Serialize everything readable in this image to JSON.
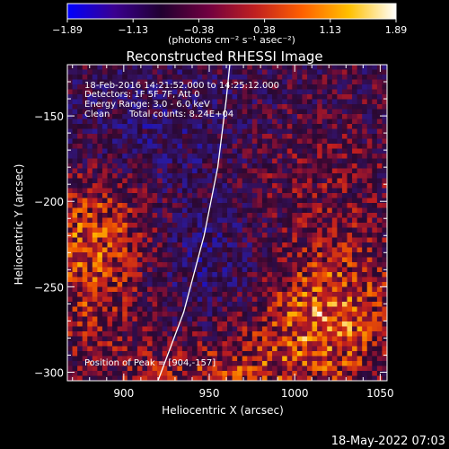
{
  "colorbar": {
    "ticks": [
      "-1.89",
      "-1.13",
      "-0.38",
      "0.38",
      "1.13",
      "1.89"
    ],
    "unit_label": "(photons cm⁻² s⁻¹ asec⁻²)",
    "range": [
      -1.89,
      1.89
    ],
    "colors": [
      "#0000ff",
      "#3a0090",
      "#200030",
      "#700040",
      "#c02020",
      "#ff6000",
      "#ffc000",
      "#ffffff"
    ]
  },
  "chart_data": {
    "type": "heatmap",
    "title": "Reconstructed RHESSI Image",
    "xlabel": "Heliocentric X (arcsec)",
    "ylabel": "Heliocentric Y (arcsec)",
    "xlim": [
      867,
      1054
    ],
    "ylim": [
      -305,
      -120
    ],
    "xticks": [
      900,
      950,
      1000,
      1050
    ],
    "yticks": [
      -150,
      -200,
      -250,
      -300
    ],
    "xtick_labels": [
      "900",
      "950",
      "1000",
      "1050"
    ],
    "ytick_labels": [
      "-150",
      "-200",
      "-250",
      "-300"
    ],
    "grid": false,
    "limb_curve": {
      "points": [
        [
          920,
          -305
        ],
        [
          935,
          -265
        ],
        [
          947,
          -220
        ],
        [
          955,
          -180
        ],
        [
          960,
          -140
        ],
        [
          962,
          -120
        ]
      ],
      "color": "#ffffff"
    },
    "annotations": [
      "18-Feb-2016 14:21:52.000 to 14:25:12.000",
      "Detectors: 1F 5F 7F, Att 0",
      "Energy Range: 3.0 - 6.0 keV",
      "Clean",
      "Total counts: 8.24E+04",
      "Position of Peak = [904,-157]"
    ],
    "peak": [
      904,
      -157
    ]
  },
  "footer_date": "18-May-2022 07:03"
}
